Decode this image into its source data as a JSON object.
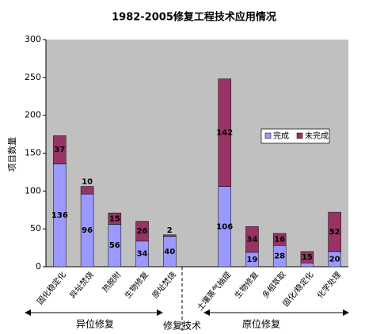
{
  "chart_data": {
    "type": "stacked_bar",
    "title": "1982-2005修复工程技术应用情况",
    "y_label": "项目数量",
    "categories": [
      "固化稳定化",
      "异址焚烧",
      "热脱附",
      "生物修复",
      "原址焚烧",
      null,
      "土壤蒸气抽提",
      "生物修复",
      "多相萃取",
      "固化/稳定化",
      "化学处理"
    ],
    "series": [
      {
        "name": "完成",
        "color": "#9999ff",
        "values": [
          136,
          96,
          56,
          34,
          40,
          null,
          106,
          19,
          28,
          5,
          20
        ]
      },
      {
        "name": "未完成",
        "color": "#993366",
        "values": [
          37,
          10,
          15,
          26,
          2,
          null,
          142,
          34,
          16,
          15,
          52
        ]
      }
    ],
    "ylim": [
      0,
      300
    ],
    "yticks": [
      0,
      50,
      100,
      150,
      200,
      250,
      300
    ],
    "grid": false,
    "legend": "right",
    "annotations": [
      "异位修复",
      "修复技术",
      "原位修复"
    ]
  }
}
